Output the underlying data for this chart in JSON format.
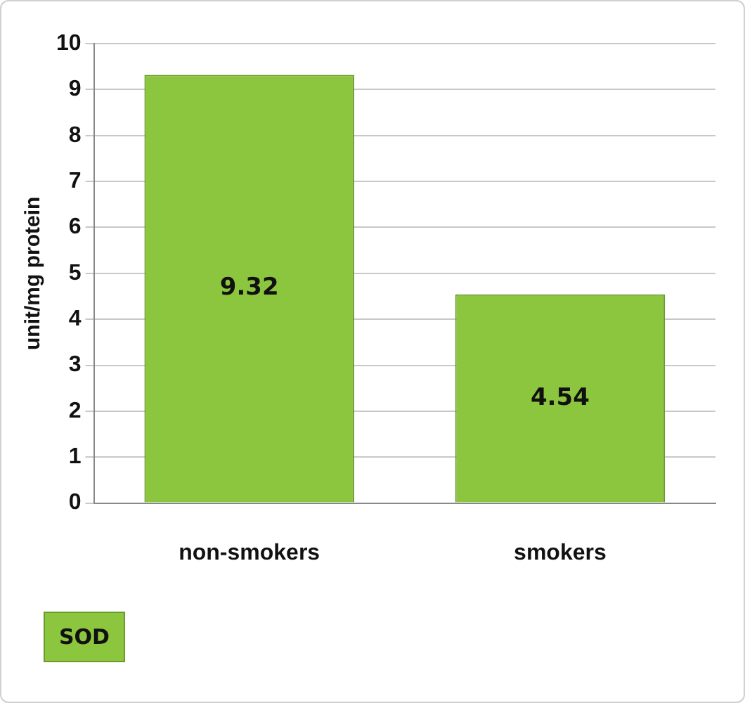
{
  "chart_data": {
    "type": "bar",
    "ylabel": "unit/mg protein",
    "categories": [
      "non-smokers",
      "smokers"
    ],
    "series": [
      {
        "name": "SOD",
        "color": "#8cc63e",
        "values": [
          9.32,
          4.54
        ]
      }
    ],
    "ylim": [
      0,
      10
    ],
    "yticks": [
      0,
      1,
      2,
      3,
      4,
      5,
      6,
      7,
      8,
      9,
      10
    ],
    "grid": "y",
    "legend": "bottom left",
    "data_labels": true
  }
}
